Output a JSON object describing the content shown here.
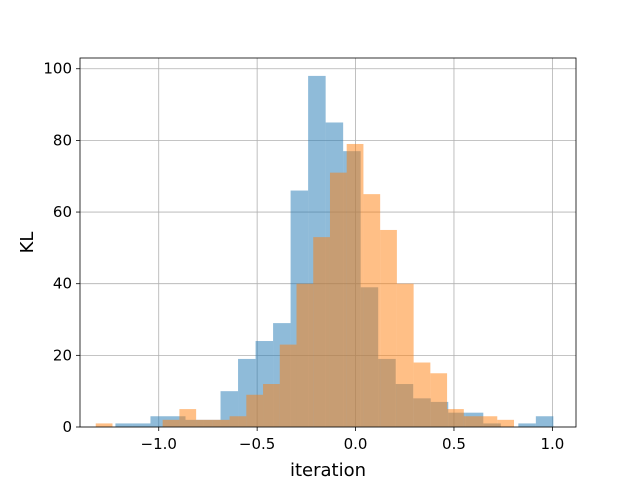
{
  "chart_data": {
    "type": "bar",
    "title": "",
    "xlabel": "iteration",
    "ylabel": "KL",
    "xlim": [
      -1.4,
      1.12
    ],
    "ylim": [
      0,
      103
    ],
    "grid": true,
    "legend": "none",
    "x_ticks": [
      {
        "value": -1.0,
        "label": "−1.0"
      },
      {
        "value": -0.5,
        "label": "−0.5"
      },
      {
        "value": 0.0,
        "label": "0.0"
      },
      {
        "value": 0.5,
        "label": "0.5"
      },
      {
        "value": 1.0,
        "label": "1.0"
      }
    ],
    "y_ticks": [
      {
        "value": 0,
        "label": "0"
      },
      {
        "value": 20,
        "label": "20"
      },
      {
        "value": 40,
        "label": "40"
      },
      {
        "value": 60,
        "label": "60"
      },
      {
        "value": 80,
        "label": "80"
      },
      {
        "value": 100,
        "label": "100"
      }
    ],
    "series": [
      {
        "color": "#1f77b4",
        "opacity": 0.5,
        "bin_edges": [
          -1.22,
          -1.131,
          -1.042,
          -0.953,
          -0.864,
          -0.775,
          -0.686,
          -0.597,
          -0.508,
          -0.419,
          -0.33,
          -0.241,
          -0.152,
          -0.063,
          0.026,
          0.115,
          0.204,
          0.293,
          0.382,
          0.471,
          0.56,
          0.649,
          0.738,
          0.827,
          0.916,
          1.005
        ],
        "counts": [
          1,
          1,
          3,
          3,
          2,
          2,
          10,
          19,
          24,
          29,
          66,
          98,
          85,
          77,
          39,
          19,
          12,
          8,
          7,
          4,
          4,
          1,
          0,
          1,
          3
        ]
      },
      {
        "color": "#ff7f0e",
        "opacity": 0.5,
        "bin_edges": [
          -1.32,
          -1.235,
          -1.15,
          -1.065,
          -0.98,
          -0.895,
          -0.81,
          -0.725,
          -0.64,
          -0.555,
          -0.47,
          -0.385,
          -0.3,
          -0.215,
          -0.13,
          -0.045,
          0.04,
          0.125,
          0.21,
          0.295,
          0.38,
          0.465,
          0.55,
          0.635,
          0.72,
          0.805
        ],
        "counts": [
          1,
          0,
          0,
          0,
          2,
          5,
          2,
          2,
          3,
          9,
          12,
          23,
          40,
          53,
          71,
          79,
          65,
          55,
          40,
          18,
          15,
          5,
          3,
          3,
          2
        ]
      }
    ]
  }
}
